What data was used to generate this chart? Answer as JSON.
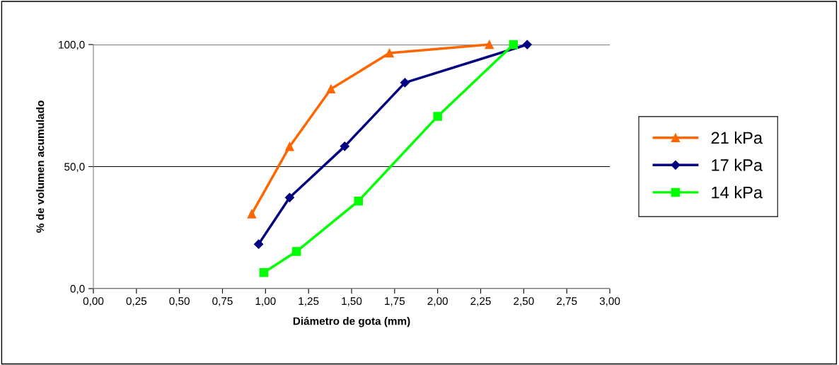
{
  "chart_data": {
    "type": "line",
    "xlabel": "Diámetro de gota (mm)",
    "ylabel": "% de volumen acumulado",
    "xlim": [
      0,
      3
    ],
    "ylim": [
      0,
      100
    ],
    "xticks": [
      {
        "value": 0,
        "label": "0,00"
      },
      {
        "value": 0.25,
        "label": "0,25"
      },
      {
        "value": 0.5,
        "label": "0,50"
      },
      {
        "value": 0.75,
        "label": "0,75"
      },
      {
        "value": 1,
        "label": "1,00"
      },
      {
        "value": 1.25,
        "label": "1,25"
      },
      {
        "value": 1.5,
        "label": "1,50"
      },
      {
        "value": 1.75,
        "label": "1,75"
      },
      {
        "value": 2,
        "label": "2,00"
      },
      {
        "value": 2.25,
        "label": "2,25"
      },
      {
        "value": 2.5,
        "label": "2,50"
      },
      {
        "value": 2.75,
        "label": "2,75"
      },
      {
        "value": 3,
        "label": "3,00"
      }
    ],
    "yticks": [
      {
        "value": 0,
        "label": "0,0"
      },
      {
        "value": 50,
        "label": "50,0"
      },
      {
        "value": 100,
        "label": "100,0"
      }
    ],
    "grid": "y",
    "legend": "right",
    "series": [
      {
        "name": "21 kPa",
        "color": "#ff6600",
        "marker": "triangle",
        "x": [
          0.92,
          1.14,
          1.38,
          1.72,
          2.3
        ],
        "values": [
          30.6,
          58.2,
          81.8,
          96.5,
          100
        ]
      },
      {
        "name": "17 kPa",
        "color": "#000080",
        "marker": "diamond",
        "x": [
          0.96,
          1.14,
          1.46,
          1.81,
          2.52
        ],
        "values": [
          18.2,
          37.3,
          58.3,
          84.4,
          100
        ]
      },
      {
        "name": "14 kPa",
        "color": "#00ff00",
        "marker": "square",
        "x": [
          0.99,
          1.18,
          1.54,
          2.0,
          2.44
        ],
        "values": [
          6.6,
          15.2,
          35.9,
          70.6,
          100
        ]
      }
    ]
  }
}
